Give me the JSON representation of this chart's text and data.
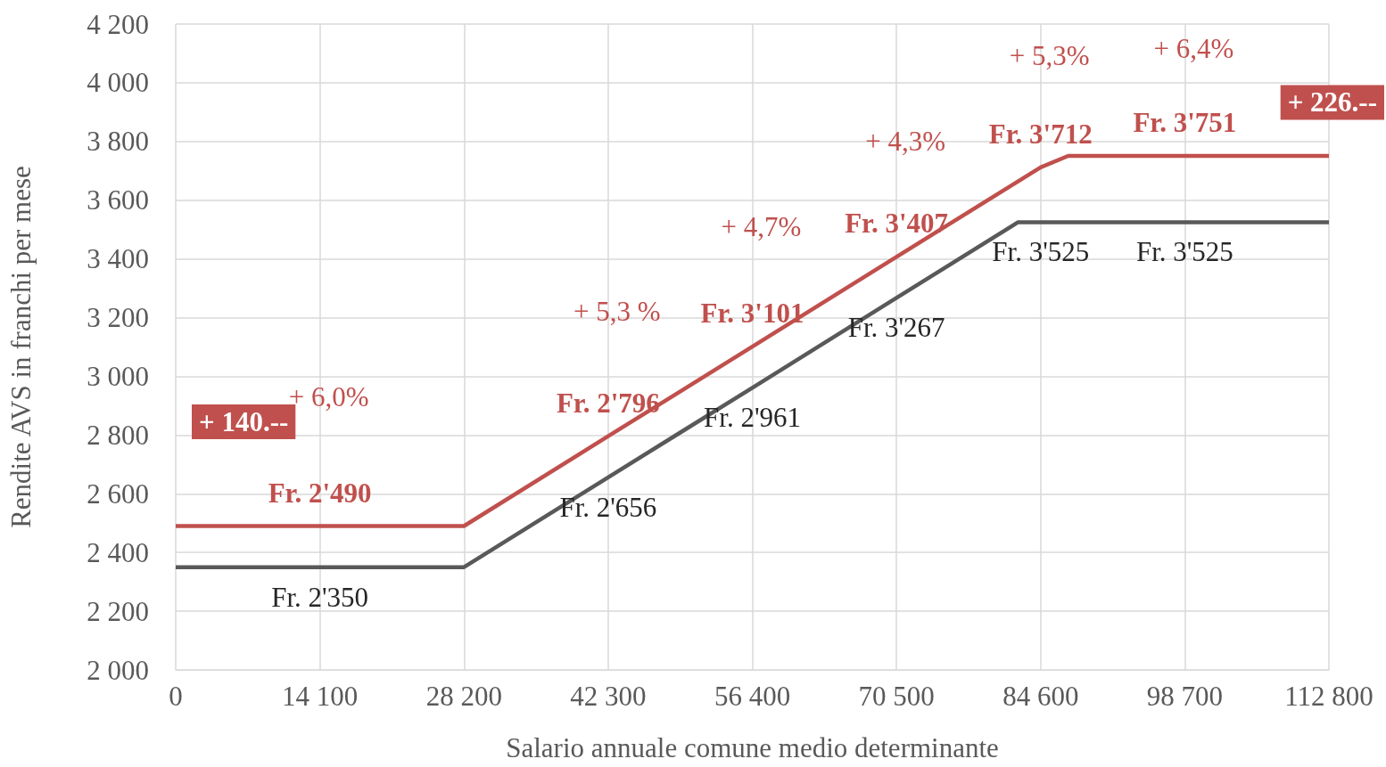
{
  "chart_data": {
    "type": "line",
    "xlabel": "Salario annuale comune medio determinante",
    "ylabel": "Rendite AVS in franchi per mese",
    "xlim": [
      0,
      112800
    ],
    "xticks": [
      0,
      {
        "value": 14100,
        "label": "14 100"
      },
      {
        "value": 28200,
        "label": "28 200"
      },
      {
        "value": 42300,
        "label": "42 300"
      },
      {
        "value": 56400,
        "label": "56 400"
      },
      {
        "value": 70500,
        "label": "70 500"
      },
      {
        "value": 84600,
        "label": "84 600"
      },
      {
        "value": 98700,
        "label": "98 700"
      },
      {
        "value": 112800,
        "label": "112 800"
      }
    ],
    "ylim": [
      2000,
      4200
    ],
    "yticks": [
      {
        "value": 2000,
        "label": "2 000"
      },
      {
        "value": 2200,
        "label": "2 200"
      },
      {
        "value": 2400,
        "label": "2 400"
      },
      {
        "value": 2600,
        "label": "2 600"
      },
      {
        "value": 2800,
        "label": "2 800"
      },
      {
        "value": 3000,
        "label": "3 000"
      },
      {
        "value": 3200,
        "label": "3 200"
      },
      {
        "value": 3400,
        "label": "3 400"
      },
      {
        "value": 3600,
        "label": "3 600"
      },
      {
        "value": 3800,
        "label": "3 800"
      },
      {
        "value": 4000,
        "label": "4 000"
      },
      {
        "value": 4200,
        "label": "4 200"
      }
    ],
    "grid": true,
    "marker": "none",
    "line_style": "solid",
    "series": [
      {
        "color": "#c0504d",
        "x": [
          0,
          14100,
          28200,
          42300,
          56400,
          70500,
          84600,
          87300,
          98700,
          112800
        ],
        "values": [
          2490,
          2490,
          2490,
          2796,
          3101,
          3407,
          3712,
          3751,
          3751,
          3751
        ],
        "value_labels": [
          null,
          "Fr. 2'490",
          null,
          "Fr. 2'796",
          "Fr. 3'101",
          "Fr. 3'407",
          "Fr. 3'712",
          null,
          "Fr. 3'751",
          null
        ]
      },
      {
        "color": "#595959",
        "x": [
          0,
          14100,
          28200,
          42300,
          56400,
          70500,
          82400,
          84600,
          98700,
          112800
        ],
        "values": [
          2350,
          2350,
          2350,
          2656,
          2961,
          3267,
          3525,
          3525,
          3525,
          3525
        ],
        "value_labels": [
          null,
          "Fr. 2'350",
          null,
          "Fr. 2'656",
          "Fr. 2'961",
          "Fr. 3'267",
          null,
          "Fr. 3'525",
          "Fr. 3'525",
          null
        ]
      }
    ],
    "annotations": [
      "+ 140.--",
      "+ 226.--",
      "+ 6,0%",
      "+ 5,3 %",
      "+ 4,7%",
      "+ 4,3%",
      "+ 5,3%",
      "+ 6,4%"
    ]
  }
}
